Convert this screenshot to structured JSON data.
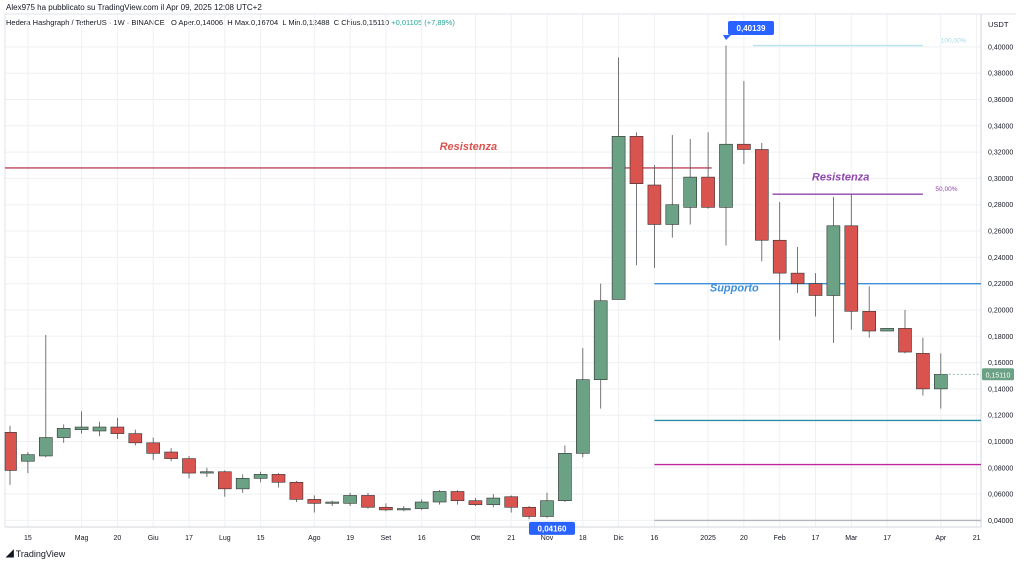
{
  "header": {
    "published": "Alex975 ha pubblicato su TradingView.com il Apr 09, 2025 12:08 UTC+2",
    "symbol": "Hedera Hashgraph / TetherUS · 1W · BINANCE",
    "o_label": "O",
    "o_value": "Aper.0,14006",
    "h_label": "H",
    "h_value": "Max.0,16704",
    "l_label": "L",
    "l_value": "Min.0,12488",
    "c_label": "C",
    "c_value": "Chius.0,15110",
    "change": "+0,01105 (+7,89%)"
  },
  "currency": "USDT",
  "footer": {
    "brand": "TradingView"
  },
  "colors": {
    "up": "#6ba184",
    "down": "#d9534f",
    "grid": "#eef0f3",
    "axis": "#131722"
  },
  "chart_data": {
    "type": "candlestick",
    "ylim": [
      0.035,
      0.425
    ],
    "yticks": [
      "0,04000",
      "0,06000",
      "0,08000",
      "0,10000",
      "0,12000",
      "0,14000",
      "0,16000",
      "0,18000",
      "0,20000",
      "0,22000",
      "0,24000",
      "0,26000",
      "0,28000",
      "0,30000",
      "0,32000",
      "0,34000",
      "0,36000",
      "0,38000",
      "0,40000"
    ],
    "xticks": [
      {
        "i": 1,
        "label": "15"
      },
      {
        "i": 4,
        "label": "Mag"
      },
      {
        "i": 6,
        "label": "20"
      },
      {
        "i": 8,
        "label": "Giu"
      },
      {
        "i": 10,
        "label": "17"
      },
      {
        "i": 12,
        "label": "Lug"
      },
      {
        "i": 14,
        "label": "15"
      },
      {
        "i": 17,
        "label": "Ago"
      },
      {
        "i": 19,
        "label": "19"
      },
      {
        "i": 21,
        "label": "Set"
      },
      {
        "i": 23,
        "label": "16"
      },
      {
        "i": 26,
        "label": "Ott"
      },
      {
        "i": 28,
        "label": "21"
      },
      {
        "i": 30,
        "label": "Nov"
      },
      {
        "i": 32,
        "label": "18"
      },
      {
        "i": 34,
        "label": "Dic"
      },
      {
        "i": 36,
        "label": "16"
      },
      {
        "i": 39,
        "label": "2025"
      },
      {
        "i": 41,
        "label": "20"
      },
      {
        "i": 43,
        "label": "Feb"
      },
      {
        "i": 45,
        "label": "17"
      },
      {
        "i": 47,
        "label": "Mar"
      },
      {
        "i": 49,
        "label": "17"
      },
      {
        "i": 52,
        "label": "Apr"
      },
      {
        "i": 54,
        "label": "21"
      }
    ],
    "candles": [
      {
        "o": 0.107,
        "h": 0.112,
        "l": 0.067,
        "c": 0.078
      },
      {
        "o": 0.085,
        "h": 0.092,
        "l": 0.076,
        "c": 0.09
      },
      {
        "o": 0.089,
        "h": 0.181,
        "l": 0.088,
        "c": 0.103
      },
      {
        "o": 0.103,
        "h": 0.113,
        "l": 0.099,
        "c": 0.11
      },
      {
        "o": 0.109,
        "h": 0.123,
        "l": 0.106,
        "c": 0.111
      },
      {
        "o": 0.108,
        "h": 0.115,
        "l": 0.104,
        "c": 0.111
      },
      {
        "o": 0.111,
        "h": 0.118,
        "l": 0.102,
        "c": 0.106
      },
      {
        "o": 0.106,
        "h": 0.109,
        "l": 0.097,
        "c": 0.099
      },
      {
        "o": 0.099,
        "h": 0.103,
        "l": 0.086,
        "c": 0.091
      },
      {
        "o": 0.092,
        "h": 0.095,
        "l": 0.085,
        "c": 0.087
      },
      {
        "o": 0.087,
        "h": 0.089,
        "l": 0.072,
        "c": 0.076
      },
      {
        "o": 0.076,
        "h": 0.08,
        "l": 0.073,
        "c": 0.077
      },
      {
        "o": 0.077,
        "h": 0.078,
        "l": 0.058,
        "c": 0.064
      },
      {
        "o": 0.064,
        "h": 0.075,
        "l": 0.061,
        "c": 0.072
      },
      {
        "o": 0.072,
        "h": 0.077,
        "l": 0.069,
        "c": 0.075
      },
      {
        "o": 0.075,
        "h": 0.076,
        "l": 0.065,
        "c": 0.069
      },
      {
        "o": 0.069,
        "h": 0.07,
        "l": 0.054,
        "c": 0.056
      },
      {
        "o": 0.056,
        "h": 0.059,
        "l": 0.046,
        "c": 0.053
      },
      {
        "o": 0.053,
        "h": 0.055,
        "l": 0.051,
        "c": 0.054
      },
      {
        "o": 0.053,
        "h": 0.061,
        "l": 0.051,
        "c": 0.059
      },
      {
        "o": 0.059,
        "h": 0.061,
        "l": 0.049,
        "c": 0.05
      },
      {
        "o": 0.05,
        "h": 0.053,
        "l": 0.047,
        "c": 0.048
      },
      {
        "o": 0.048,
        "h": 0.051,
        "l": 0.047,
        "c": 0.049
      },
      {
        "o": 0.049,
        "h": 0.056,
        "l": 0.048,
        "c": 0.054
      },
      {
        "o": 0.054,
        "h": 0.063,
        "l": 0.052,
        "c": 0.062
      },
      {
        "o": 0.062,
        "h": 0.063,
        "l": 0.052,
        "c": 0.055
      },
      {
        "o": 0.055,
        "h": 0.057,
        "l": 0.051,
        "c": 0.052
      },
      {
        "o": 0.052,
        "h": 0.06,
        "l": 0.05,
        "c": 0.057
      },
      {
        "o": 0.058,
        "h": 0.059,
        "l": 0.046,
        "c": 0.05
      },
      {
        "o": 0.05,
        "h": 0.051,
        "l": 0.041,
        "c": 0.043
      },
      {
        "o": 0.043,
        "h": 0.061,
        "l": 0.042,
        "c": 0.055
      },
      {
        "o": 0.055,
        "h": 0.097,
        "l": 0.054,
        "c": 0.091
      },
      {
        "o": 0.091,
        "h": 0.171,
        "l": 0.088,
        "c": 0.147
      },
      {
        "o": 0.147,
        "h": 0.22,
        "l": 0.125,
        "c": 0.207
      },
      {
        "o": 0.208,
        "h": 0.392,
        "l": 0.208,
        "c": 0.332
      },
      {
        "o": 0.332,
        "h": 0.335,
        "l": 0.234,
        "c": 0.296
      },
      {
        "o": 0.295,
        "h": 0.31,
        "l": 0.232,
        "c": 0.265
      },
      {
        "o": 0.265,
        "h": 0.333,
        "l": 0.255,
        "c": 0.28
      },
      {
        "o": 0.278,
        "h": 0.33,
        "l": 0.265,
        "c": 0.301
      },
      {
        "o": 0.301,
        "h": 0.335,
        "l": 0.277,
        "c": 0.278
      },
      {
        "o": 0.278,
        "h": 0.401,
        "l": 0.249,
        "c": 0.326
      },
      {
        "o": 0.326,
        "h": 0.374,
        "l": 0.311,
        "c": 0.322
      },
      {
        "o": 0.322,
        "h": 0.327,
        "l": 0.237,
        "c": 0.253
      },
      {
        "o": 0.253,
        "h": 0.282,
        "l": 0.177,
        "c": 0.228
      },
      {
        "o": 0.228,
        "h": 0.248,
        "l": 0.213,
        "c": 0.22
      },
      {
        "o": 0.22,
        "h": 0.228,
        "l": 0.195,
        "c": 0.211
      },
      {
        "o": 0.211,
        "h": 0.286,
        "l": 0.175,
        "c": 0.264
      },
      {
        "o": 0.264,
        "h": 0.288,
        "l": 0.185,
        "c": 0.199
      },
      {
        "o": 0.199,
        "h": 0.218,
        "l": 0.179,
        "c": 0.184
      },
      {
        "o": 0.184,
        "h": 0.186,
        "l": 0.184,
        "c": 0.186
      },
      {
        "o": 0.186,
        "h": 0.2,
        "l": 0.167,
        "c": 0.168
      },
      {
        "o": 0.167,
        "h": 0.179,
        "l": 0.135,
        "c": 0.14
      },
      {
        "o": 0.14,
        "h": 0.167,
        "l": 0.125,
        "c": 0.151
      }
    ],
    "current_price": "0,15110",
    "current_value": 0.1511,
    "callout_high": "0,40139",
    "callout_high_value": 0.40139,
    "callout_low": "0,04160",
    "callout_low_value": 0.0416,
    "hlines": [
      {
        "y": 0.308,
        "from": -0.3,
        "to": 39.2,
        "color": "#c0465b"
      },
      {
        "y": 0.22,
        "from": 36.0,
        "to": 56.6,
        "color": "#3d8fd9"
      },
      {
        "y": 0.288,
        "from": 42.6,
        "to": 51.0,
        "color": "#8e45ad"
      },
      {
        "y": 0.116,
        "from": 36.0,
        "to": 56.6,
        "color": "#2a8fa6"
      },
      {
        "y": 0.0825,
        "from": 36.0,
        "to": 56.6,
        "color": "#c0279e"
      },
      {
        "y": 0.401,
        "from": 41.5,
        "to": 51.0,
        "color": "#b7e4ee"
      },
      {
        "y": 0.04,
        "from": 36.0,
        "to": 56.6,
        "color": "#b2b5be"
      }
    ],
    "annotations": [
      {
        "text": "Resistenza",
        "x": 24.0,
        "y": 0.3215,
        "color": "#d9534f"
      },
      {
        "text": "Resistenza",
        "x": 44.8,
        "y": 0.2985,
        "color": "#8e45ad"
      },
      {
        "text": "Supporto",
        "x": 39.1,
        "y": 0.2142,
        "color": "#3d8fd9"
      },
      {
        "text": "50,00%",
        "x": 51.7,
        "y": 0.2905,
        "color": "#8e45ad"
      },
      {
        "text": "100,00%",
        "x": 52.0,
        "y": 0.4035,
        "color": "#a8d9e4"
      }
    ]
  }
}
